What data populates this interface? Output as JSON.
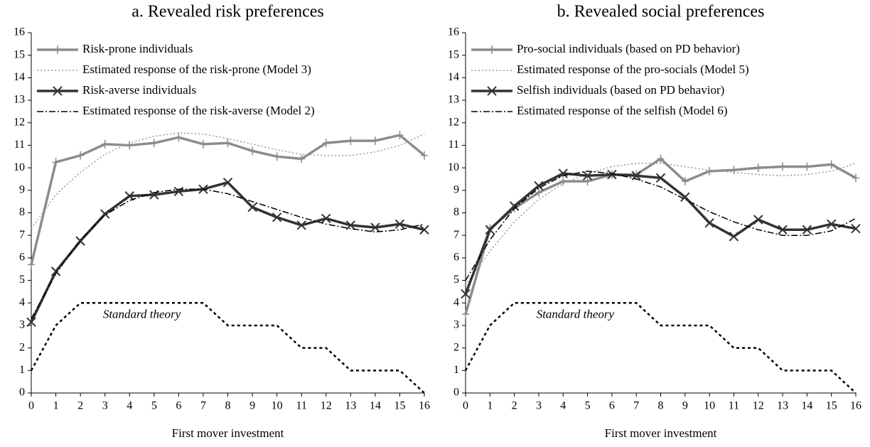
{
  "chart_data": [
    {
      "type": "line",
      "title": "a. Revealed risk preferences",
      "xlabel": "First mover investment",
      "x": [
        0,
        1,
        2,
        3,
        4,
        5,
        6,
        7,
        8,
        9,
        10,
        11,
        12,
        13,
        14,
        15,
        16
      ],
      "xlim": [
        0,
        16
      ],
      "ylim": [
        0,
        16
      ],
      "xticks": [
        0,
        1,
        2,
        3,
        4,
        5,
        6,
        7,
        8,
        9,
        10,
        11,
        12,
        13,
        14,
        15,
        16
      ],
      "yticks": [
        0,
        1,
        2,
        3,
        4,
        5,
        6,
        7,
        8,
        9,
        10,
        11,
        12,
        13,
        14,
        15,
        16
      ],
      "series": [
        {
          "name": "Risk-prone individuals",
          "color": "#8c8c8c",
          "line_style": "solid",
          "marker": "plus",
          "values": [
            5.7,
            10.25,
            10.55,
            11.05,
            11.0,
            11.1,
            11.35,
            11.05,
            11.1,
            10.75,
            10.5,
            10.4,
            11.1,
            11.2,
            11.2,
            11.45,
            10.55
          ]
        },
        {
          "name": "Estimated response of the risk-prone (Model 3)",
          "color": "#999999",
          "line_style": "dotted",
          "values": [
            7.3,
            8.8,
            9.8,
            10.6,
            11.1,
            11.4,
            11.55,
            11.5,
            11.3,
            11.05,
            10.8,
            10.6,
            10.55,
            10.55,
            10.7,
            11.0,
            11.5
          ]
        },
        {
          "name": "Risk-averse individuals",
          "color": "#333333",
          "line_style": "solid",
          "marker": "cross",
          "values": [
            3.15,
            5.4,
            6.75,
            7.95,
            8.75,
            8.8,
            8.95,
            9.05,
            9.35,
            8.25,
            7.8,
            7.45,
            7.75,
            7.45,
            7.35,
            7.5,
            7.25
          ]
        },
        {
          "name": "Estimated response of the risk-averse (Model 2)",
          "color": "#000000",
          "line_style": "dashdot",
          "values": [
            3.3,
            5.3,
            6.8,
            7.9,
            8.55,
            8.9,
            9.05,
            9.05,
            8.85,
            8.5,
            8.15,
            7.8,
            7.5,
            7.3,
            7.15,
            7.25,
            7.5
          ]
        },
        {
          "name": "Standard theory",
          "color": "#000000",
          "line_style": "dashed",
          "legend": false,
          "values": [
            1,
            3,
            4,
            4,
            4,
            4,
            4,
            4,
            3,
            3,
            3,
            2,
            2,
            1,
            1,
            1,
            0
          ]
        }
      ]
    },
    {
      "type": "line",
      "title": "b. Revealed social preferences",
      "xlabel": "First mover investment",
      "x": [
        0,
        1,
        2,
        3,
        4,
        5,
        6,
        7,
        8,
        9,
        10,
        11,
        12,
        13,
        14,
        15,
        16
      ],
      "xlim": [
        0,
        16
      ],
      "ylim": [
        0,
        16
      ],
      "xticks": [
        0,
        1,
        2,
        3,
        4,
        5,
        6,
        7,
        8,
        9,
        10,
        11,
        12,
        13,
        14,
        15,
        16
      ],
      "yticks": [
        0,
        1,
        2,
        3,
        4,
        5,
        6,
        7,
        8,
        9,
        10,
        11,
        12,
        13,
        14,
        15,
        16
      ],
      "series": [
        {
          "name": "Pro-social individuals (based on PD behavior)",
          "color": "#8c8c8c",
          "line_style": "solid",
          "marker": "plus",
          "values": [
            3.5,
            7.3,
            8.2,
            8.9,
            9.4,
            9.4,
            9.7,
            9.7,
            10.4,
            9.4,
            9.85,
            9.9,
            10.0,
            10.05,
            10.05,
            10.15,
            9.55
          ]
        },
        {
          "name": "Estimated response of the pro-socials (Model 5)",
          "color": "#999999",
          "line_style": "dotted",
          "values": [
            4.8,
            6.3,
            7.6,
            8.6,
            9.3,
            9.75,
            10.05,
            10.2,
            10.2,
            10.05,
            9.9,
            9.8,
            9.7,
            9.65,
            9.7,
            9.85,
            10.2
          ]
        },
        {
          "name": "Selfish individuals (based on PD behavior)",
          "color": "#333333",
          "line_style": "solid",
          "marker": "cross",
          "values": [
            4.4,
            7.25,
            8.3,
            9.2,
            9.75,
            9.65,
            9.7,
            9.65,
            9.55,
            8.7,
            7.55,
            6.95,
            7.7,
            7.25,
            7.25,
            7.5,
            7.3
          ]
        },
        {
          "name": "Estimated response of the selfish (Model 6)",
          "color": "#000000",
          "line_style": "dashdot",
          "values": [
            5.0,
            6.8,
            8.2,
            9.1,
            9.65,
            9.85,
            9.75,
            9.5,
            9.15,
            8.6,
            8.05,
            7.6,
            7.25,
            7.0,
            7.0,
            7.2,
            7.75
          ]
        },
        {
          "name": "Standard theory",
          "color": "#000000",
          "line_style": "dashed",
          "legend": false,
          "values": [
            1,
            3,
            4,
            4,
            4,
            4,
            4,
            4,
            3,
            3,
            3,
            2,
            2,
            1,
            1,
            1,
            0
          ]
        }
      ]
    }
  ]
}
